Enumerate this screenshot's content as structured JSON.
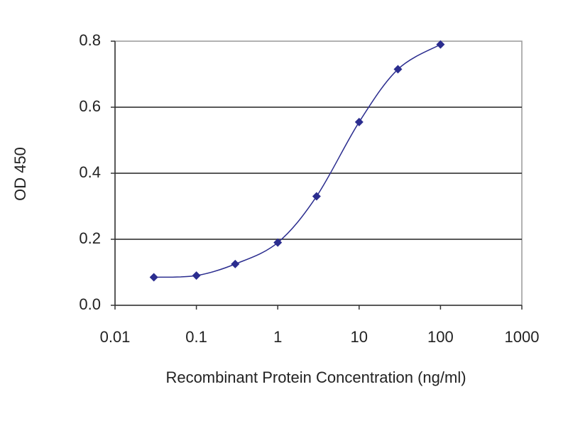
{
  "chart_data": {
    "type": "line",
    "x_label": "Recombinant Protein Concentration (ng/ml)",
    "y_label": "OD 450",
    "x": [
      0.03,
      0.1,
      0.3,
      1,
      3,
      10,
      30,
      100
    ],
    "series": [
      {
        "color": "#2b2d8f",
        "values": [
          0.085,
          0.09,
          0.125,
          0.19,
          0.33,
          0.555,
          0.715,
          0.79
        ]
      }
    ],
    "xlog": true,
    "xlim": [
      0.01,
      1000
    ],
    "xticks": [
      0.01,
      0.1,
      1,
      10,
      100,
      1000
    ],
    "ylim": [
      0,
      0.8
    ],
    "yticks": [
      {
        "value": 0,
        "label": "0.0"
      },
      {
        "value": 0.2,
        "label": "0.2"
      },
      {
        "value": 0.4,
        "label": "0.4"
      },
      {
        "value": 0.6,
        "label": "0.6"
      },
      {
        "value": 0.8,
        "label": "0.8"
      }
    ],
    "grid": true
  }
}
